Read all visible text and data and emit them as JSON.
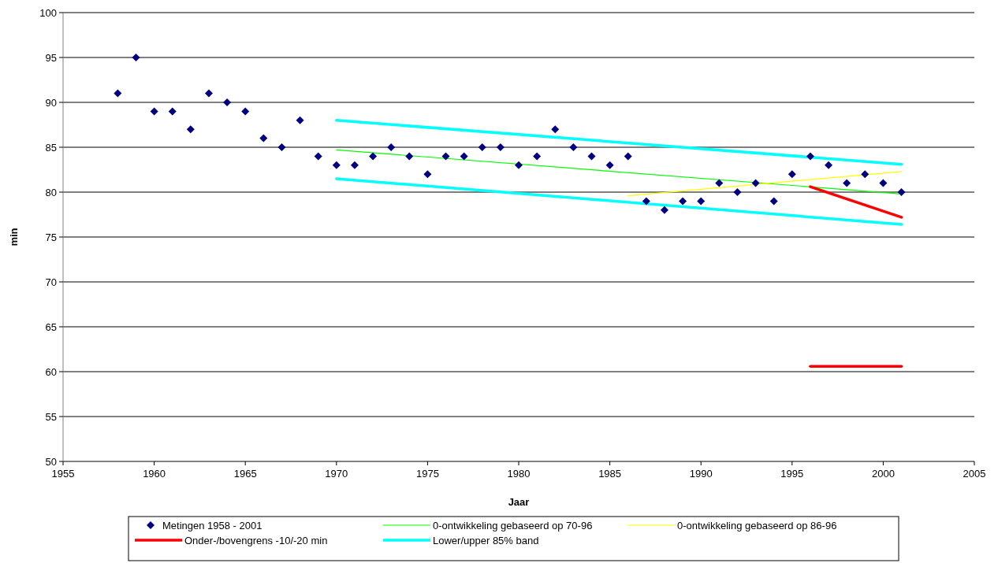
{
  "chart_data": {
    "type": "scatter",
    "xlabel": "Jaar",
    "ylabel": "min",
    "xlim": [
      1955,
      2005
    ],
    "xticks": [
      1955,
      1960,
      1965,
      1970,
      1975,
      1980,
      1985,
      1990,
      1995,
      2000,
      2005
    ],
    "ylim": [
      50,
      100
    ],
    "yticks": [
      50,
      55,
      60,
      65,
      70,
      75,
      80,
      85,
      90,
      95,
      100
    ],
    "grid": "y",
    "legend": "bottom",
    "series": [
      {
        "name": "Metingen 1958 - 2001",
        "marker": "diamond",
        "color": "#000080",
        "x": [
          1958,
          1959,
          1960,
          1961,
          1962,
          1963,
          1964,
          1965,
          1966,
          1967,
          1968,
          1969,
          1970,
          1971,
          1972,
          1973,
          1974,
          1975,
          1976,
          1977,
          1978,
          1979,
          1980,
          1981,
          1982,
          1983,
          1984,
          1985,
          1986,
          1987,
          1988,
          1989,
          1990,
          1991,
          1992,
          1993,
          1994,
          1995,
          1996,
          1997,
          1998,
          1999,
          2000,
          2001
        ],
        "values": [
          91,
          95,
          89,
          89,
          87,
          91,
          90,
          89,
          86,
          85,
          88,
          84,
          83,
          83,
          84,
          85,
          84,
          82,
          84,
          84,
          85,
          85,
          83,
          84,
          87,
          85,
          84,
          83,
          84,
          79,
          78,
          79,
          79,
          81,
          80,
          81,
          79,
          82,
          84,
          83,
          81,
          82,
          81,
          80
        ]
      },
      {
        "name": "0-ontwikkeling gebaseerd op 70-96",
        "type": "line",
        "color": "#00ff00",
        "x": [
          1970,
          2001
        ],
        "values": [
          84.7,
          79.8
        ]
      },
      {
        "name": "0-ontwikkeling gebaseerd op 86-96",
        "type": "line",
        "color": "#ffff00",
        "x": [
          1986,
          2001
        ],
        "values": [
          79.6,
          82.3
        ]
      },
      {
        "name": "Onder-/bovengrens -10/-20 min",
        "type": "line",
        "color": "#ff0000",
        "x": [
          1996,
          2001
        ],
        "values": [
          80.6,
          77.2
        ]
      },
      {
        "name": "Lower/upper 85% band",
        "type": "line",
        "color": "#00ffff",
        "x": [
          1970,
          2001
        ],
        "values": [
          88.0,
          83.1
        ]
      },
      {
        "type": "line",
        "color": "#ff0000",
        "x": [
          1996,
          2001
        ],
        "values": [
          60.6,
          60.6
        ]
      },
      {
        "type": "line",
        "color": "#00ffff",
        "x": [
          1970,
          2001
        ],
        "values": [
          81.5,
          76.4
        ]
      }
    ]
  }
}
